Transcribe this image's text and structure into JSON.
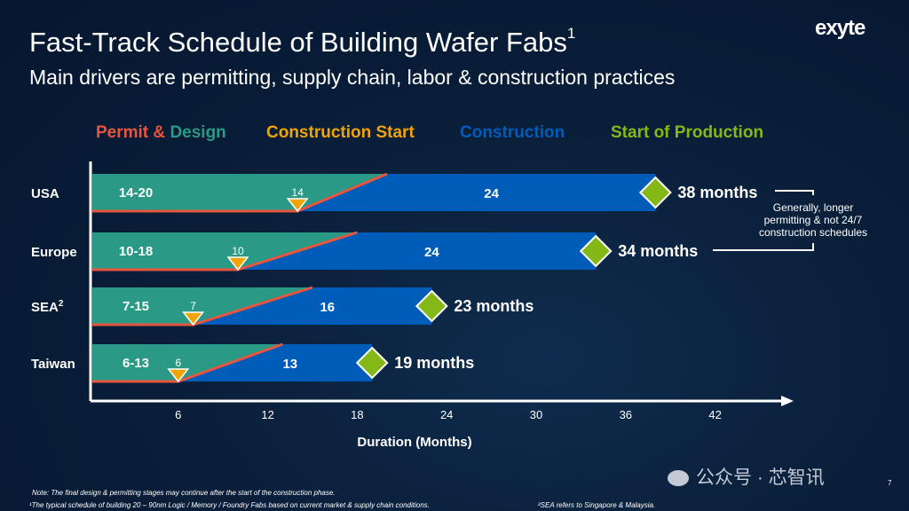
{
  "header": {
    "title": "Fast-Track Schedule of Building Wafer Fabs",
    "title_sup": "1",
    "subtitle": "Main drivers are permitting, supply chain, labor & construction practices",
    "logo": "exyte"
  },
  "legend": {
    "permit": "Permit",
    "amp": "&",
    "design": "Design",
    "construction_start": "Construction Start",
    "construction": "Construction",
    "start_of_production": "Start of Production"
  },
  "colors": {
    "permit": "#e8553f",
    "design": "#2a9a86",
    "construction_start": "#f2a400",
    "construction": "#005cb9",
    "production": "#84b817",
    "bg": "#0a1f3a"
  },
  "chart_data": {
    "type": "bar",
    "title": "Fast-Track Schedule of Building Wafer Fabs",
    "xlabel": "Duration (Months)",
    "xlim": [
      0,
      45
    ],
    "xticks": [
      6,
      12,
      18,
      24,
      30,
      36,
      42
    ],
    "categories": [
      "USA",
      "Europe",
      "SEA",
      "Taiwan"
    ],
    "category_sup": [
      "",
      "",
      "2",
      ""
    ],
    "series": [
      {
        "name": "Permit & Design range",
        "labels": [
          "14-20",
          "10-18",
          "7-15",
          "6-13"
        ],
        "min": [
          14,
          10,
          7,
          6
        ],
        "max": [
          20,
          18,
          15,
          13
        ]
      },
      {
        "name": "Construction Start",
        "values": [
          14,
          10,
          7,
          6
        ]
      },
      {
        "name": "Construction",
        "values": [
          24,
          24,
          16,
          13
        ]
      },
      {
        "name": "Start of Production",
        "values": [
          38,
          34,
          23,
          19
        ],
        "labels": [
          "38 months",
          "34 months",
          "23 months",
          "19 months"
        ]
      }
    ],
    "annotation": "Generally, longer permitting & not 24/7 construction schedules"
  },
  "annotation_lines": [
    "Generally, longer",
    "permitting & not 24/7",
    "construction schedules"
  ],
  "footer": {
    "note": "Note: The final design & permitting stages may continue after the start of the construction phase.",
    "footnote1": "¹The typical schedule of building 20 – 90nm Logic / Memory / Foundry Fabs based on current market & supply chain conditions.",
    "footnote2": "²SEA refers to Singapore & Malaysia.",
    "page": "7"
  },
  "watermark": "公众号 · 芯智讯"
}
